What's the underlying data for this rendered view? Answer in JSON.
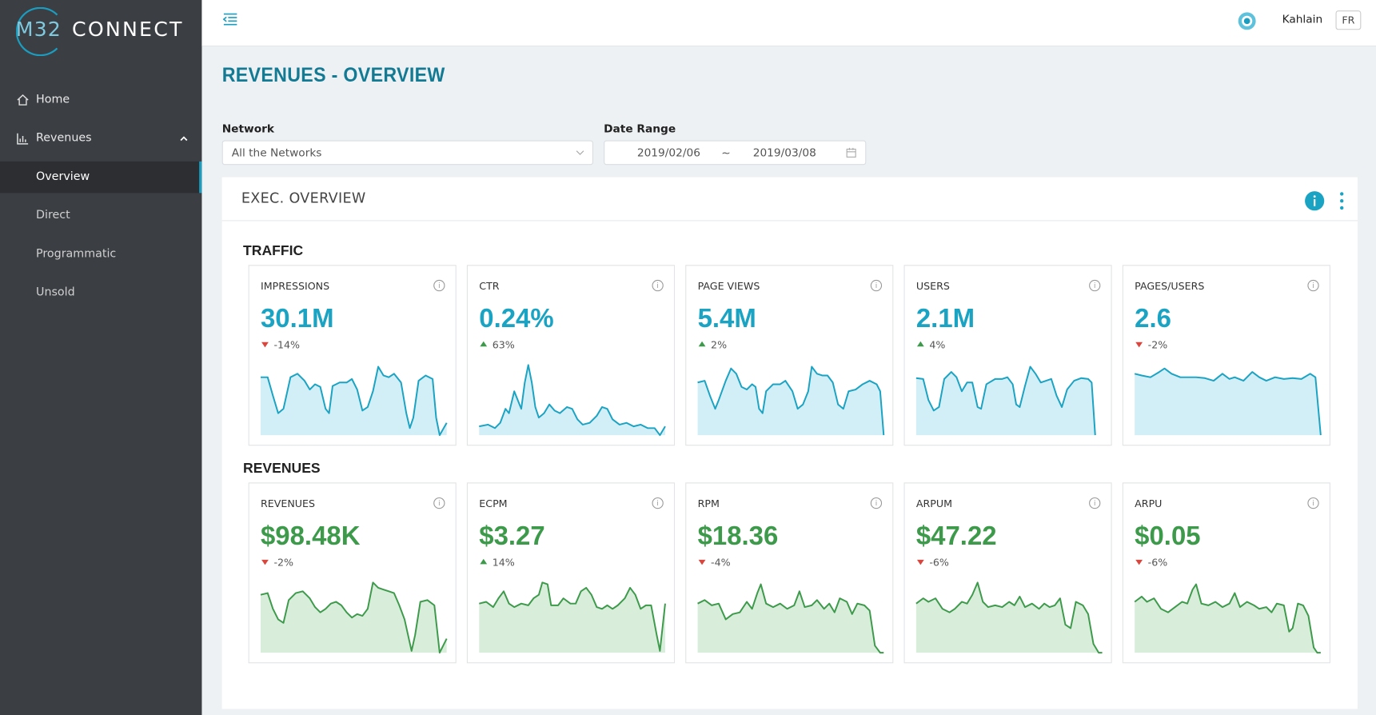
{
  "sidebar": {
    "logo_left": "M32",
    "logo_right": "CONNECT",
    "menu": [
      {
        "label": "Home"
      },
      {
        "label": "Revenues",
        "children": [
          "Overview",
          "Direct",
          "Programmatic",
          "Unsold"
        ]
      }
    ]
  },
  "header": {
    "user": "Kahlain",
    "lang": "FR"
  },
  "page": {
    "title": "REVENUES - OVERVIEW"
  },
  "filters": {
    "network_label": "Network",
    "network_value": "All the Networks",
    "date_label": "Date Range",
    "date_from": "2019/02/06",
    "date_sep": "~",
    "date_to": "2019/03/08"
  },
  "panel": {
    "title": "EXEC. OVERVIEW",
    "sections": [
      {
        "title": "TRAFFIC",
        "color": "#1aa3c2",
        "fill": "#d2eef6",
        "cards": [
          {
            "label": "IMPRESSIONS",
            "value": "30.1M",
            "change": "-14%"
          },
          {
            "label": "CTR",
            "value": "0.24%",
            "change": "63%"
          },
          {
            "label": "PAGE VIEWS",
            "value": "5.4M",
            "change": "2%"
          },
          {
            "label": "USERS",
            "value": "2.1M",
            "change": "4%"
          },
          {
            "label": "PAGES/USERS",
            "value": "2.6",
            "change": "-2%"
          }
        ]
      },
      {
        "title": "REVENUES",
        "color": "#3d9a4b",
        "fill": "#d8eedb",
        "cards": [
          {
            "label": "REVENUES",
            "value": "$98.48K",
            "change": "-2%"
          },
          {
            "label": "ECPM",
            "value": "$3.27",
            "change": "14%"
          },
          {
            "label": "RPM",
            "value": "$18.36",
            "change": "-4%"
          },
          {
            "label": "ARPUM",
            "value": "$47.22",
            "change": "-6%"
          },
          {
            "label": "ARPU",
            "value": "$0.05",
            "change": "-6%"
          }
        ]
      }
    ]
  }
}
